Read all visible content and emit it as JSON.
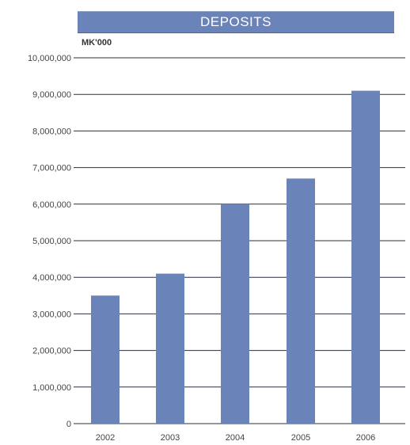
{
  "chart_data": {
    "type": "bar",
    "title": "DEPOSITS",
    "unit_label": "MK'000",
    "categories": [
      "2002",
      "2003",
      "2004",
      "2005",
      "2006"
    ],
    "values": [
      3500000,
      4100000,
      6000000,
      6700000,
      9100000
    ],
    "ylim": [
      0,
      10000000
    ],
    "ytick_labels": [
      "0",
      "1,000,000",
      "2,000,000",
      "3,000,000",
      "4,000,000",
      "5,000,000",
      "6,000,000",
      "7,000,000",
      "8,000,000",
      "9,000,000",
      "10,000,000"
    ],
    "grid": true,
    "colors": {
      "bar": "#6a83b8",
      "title_bg": "#6a83b8",
      "grid": "#2a2f3a"
    }
  }
}
